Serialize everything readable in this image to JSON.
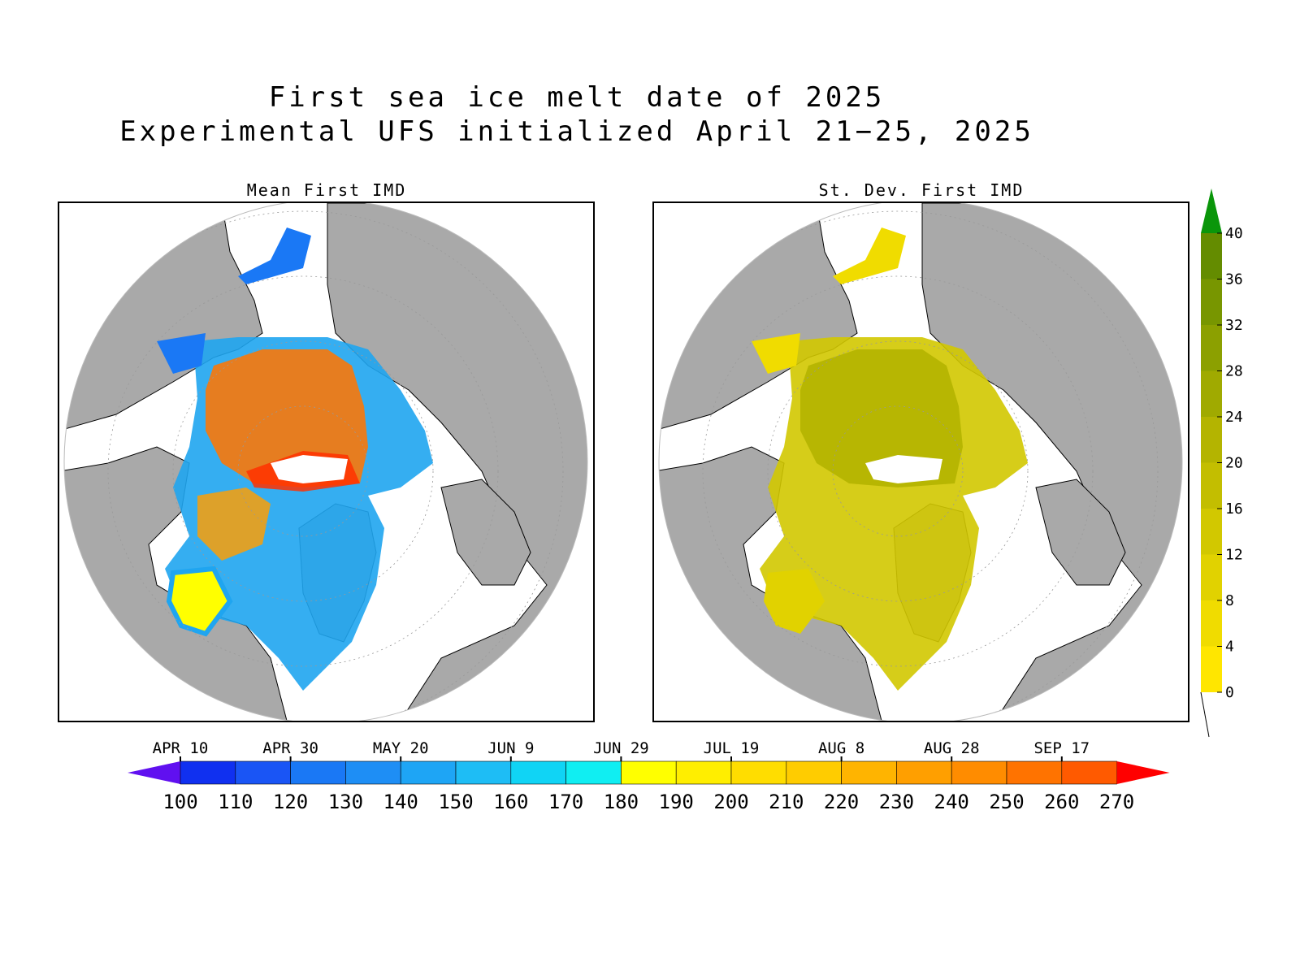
{
  "titles": {
    "line1": "First sea ice melt date of 2025",
    "line2": "Experimental UFS initialized April 21−25, 2025"
  },
  "panels": {
    "left_title": "Mean First IMD",
    "right_title": "St. Dev. First IMD"
  },
  "colors": {
    "land": "#a9a9a9",
    "ocean": "#ffffff",
    "coast": "#000000",
    "mean_ice_core": "#f07a14",
    "mean_ice_edge": "#1fa5f0",
    "sd_ice": "#c8c800",
    "sd_ice_edge": "#e6dc00"
  },
  "horizontal_colorbar": {
    "values": [
      "100",
      "110",
      "120",
      "130",
      "140",
      "150",
      "160",
      "170",
      "180",
      "190",
      "200",
      "210",
      "220",
      "230",
      "240",
      "250",
      "260",
      "270"
    ],
    "dates": [
      "APR 10",
      "APR 30",
      "MAY 20",
      "JUN 9",
      "JUN 29",
      "JUL 19",
      "AUG 8",
      "AUG 28",
      "SEP 17"
    ],
    "colors": [
      "#1030f0",
      "#1a55f5",
      "#1a78f5",
      "#1e8ef5",
      "#1ea5f5",
      "#1ebdf5",
      "#10d4f5",
      "#10eef2",
      "#ffff00",
      "#ffee00",
      "#ffdd00",
      "#ffcc00",
      "#ffb400",
      "#ff9f00",
      "#ff8c00",
      "#ff7300",
      "#ff5a00"
    ],
    "under_color": "#6010f0",
    "over_color": "#ff0000"
  },
  "vertical_colorbar": {
    "values": [
      "0",
      "4",
      "8",
      "12",
      "16",
      "20",
      "24",
      "28",
      "32",
      "36",
      "40"
    ],
    "colors": [
      "#ffe600",
      "#f0dc00",
      "#e1d200",
      "#d2c800",
      "#c3be00",
      "#b4b400",
      "#a0aa00",
      "#8ca000",
      "#789600",
      "#648c00"
    ],
    "over_color": "#0a960a"
  }
}
